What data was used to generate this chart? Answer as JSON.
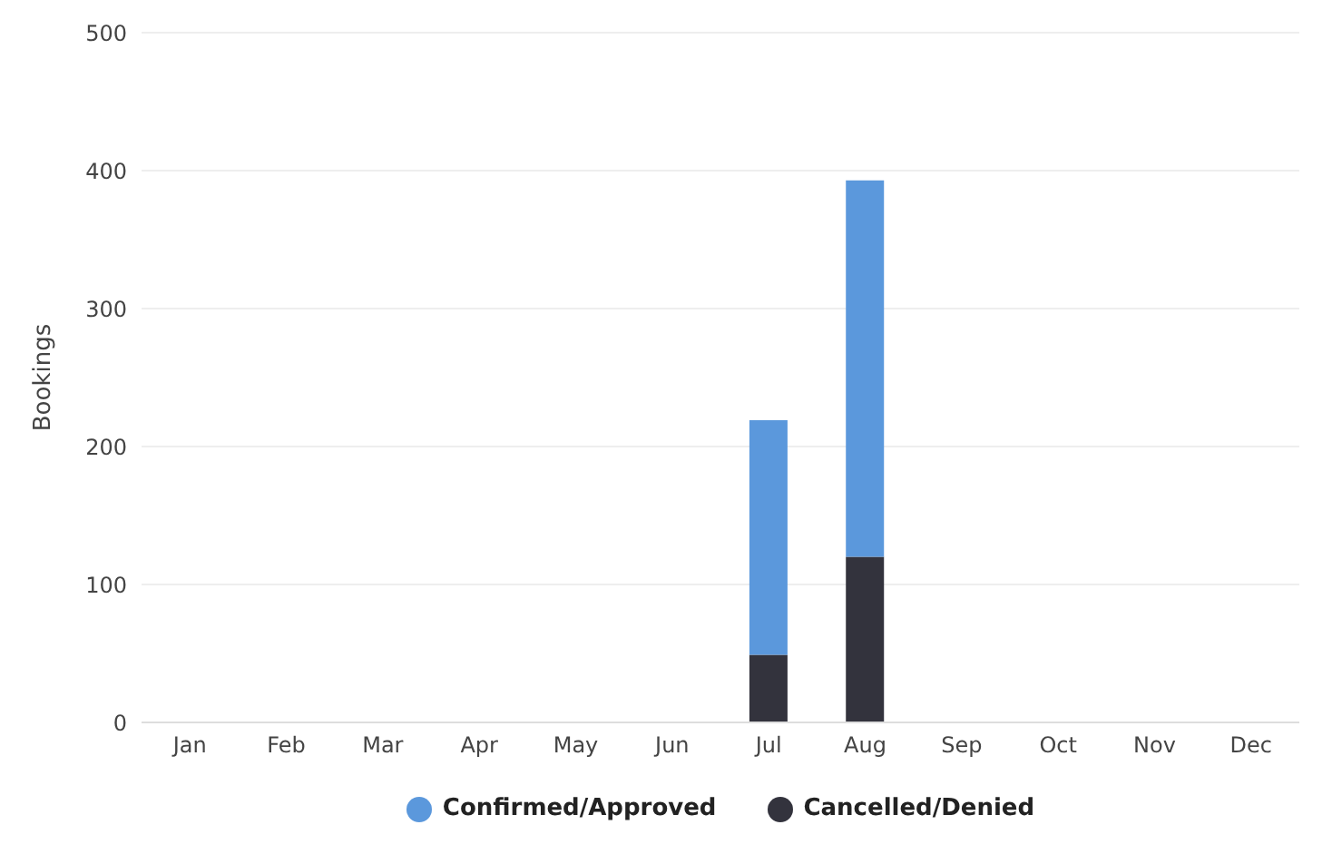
{
  "chart_data": {
    "type": "bar",
    "stacked": true,
    "ylabel": "Bookings",
    "categories": [
      "Jan",
      "Feb",
      "Mar",
      "Apr",
      "May",
      "Jun",
      "Jul",
      "Aug",
      "Sep",
      "Oct",
      "Nov",
      "Dec"
    ],
    "series": [
      {
        "name": "Cancelled/Denied",
        "color": "#33333d",
        "values": [
          0,
          0,
          0,
          0,
          0,
          0,
          49,
          120,
          0,
          0,
          0,
          0
        ]
      },
      {
        "name": "Confirmed/Approved",
        "color": "#5b98dc",
        "values": [
          0,
          0,
          0,
          0,
          0,
          0,
          170,
          273,
          0,
          0,
          0,
          0
        ]
      }
    ],
    "ylim": [
      0,
      500
    ],
    "yticks": [
      0,
      100,
      200,
      300,
      400,
      500
    ],
    "grid": "y",
    "legend": "bottom"
  }
}
